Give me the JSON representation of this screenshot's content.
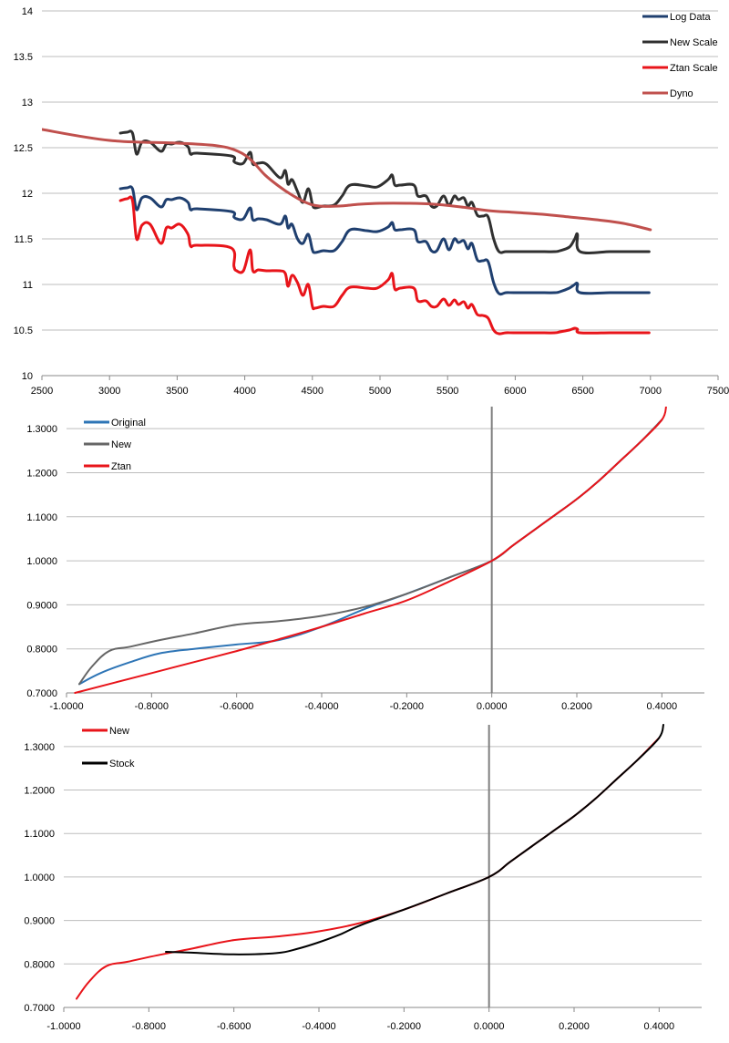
{
  "chart_data": [
    {
      "type": "line",
      "title": "",
      "xlabel": "",
      "ylabel": "",
      "xlim": [
        2500,
        7500
      ],
      "ylim": [
        10,
        14
      ],
      "xticks": [
        "2500",
        "3000",
        "3500",
        "4000",
        "4500",
        "5000",
        "5500",
        "6000",
        "6500",
        "7000",
        "7500"
      ],
      "yticks": [
        "10",
        "10.5",
        "11",
        "11.5",
        "12",
        "12.5",
        "13",
        "13.5",
        "14"
      ],
      "legend_position": "top-right",
      "series": [
        {
          "name": "Log Data",
          "color": "#1f3f6f",
          "x": [
            3080,
            3130,
            3170,
            3200,
            3240,
            3300,
            3380,
            3420,
            3460,
            3520,
            3580,
            3600,
            3650,
            3900,
            3920,
            3940,
            3990,
            4040,
            4060,
            4100,
            4160,
            4260,
            4300,
            4320,
            4350,
            4390,
            4430,
            4470,
            4500,
            4520,
            4580,
            4660,
            4720,
            4780,
            4900,
            4980,
            5060,
            5090,
            5110,
            5150,
            5250,
            5280,
            5340,
            5380,
            5420,
            5470,
            5510,
            5550,
            5580,
            5620,
            5650,
            5680,
            5720,
            5760,
            5800,
            5840,
            5880,
            5930,
            5990,
            6160,
            6290,
            6330,
            6400,
            6440,
            6460,
            6480,
            6700,
            6800,
            6990
          ],
          "values": [
            12.05,
            12.06,
            12.05,
            11.82,
            11.95,
            11.95,
            11.85,
            11.93,
            11.93,
            11.95,
            11.9,
            11.82,
            11.83,
            11.8,
            11.74,
            11.72,
            11.72,
            11.84,
            11.71,
            11.72,
            11.71,
            11.66,
            11.75,
            11.62,
            11.66,
            11.5,
            11.45,
            11.55,
            11.38,
            11.35,
            11.37,
            11.37,
            11.47,
            11.6,
            11.59,
            11.58,
            11.63,
            11.68,
            11.6,
            11.6,
            11.6,
            11.47,
            11.47,
            11.37,
            11.37,
            11.5,
            11.38,
            11.5,
            11.46,
            11.48,
            11.39,
            11.45,
            11.27,
            11.26,
            11.25,
            11.02,
            10.9,
            10.91,
            10.91,
            10.91,
            10.91,
            10.92,
            10.96,
            11.0,
            11.01,
            10.91,
            10.91,
            10.91,
            10.91
          ]
        },
        {
          "name": "New Scale",
          "color": "#303030",
          "x": [
            3080,
            3130,
            3170,
            3200,
            3240,
            3300,
            3380,
            3420,
            3460,
            3520,
            3580,
            3600,
            3650,
            3900,
            3920,
            3940,
            3990,
            4040,
            4060,
            4100,
            4160,
            4260,
            4300,
            4320,
            4350,
            4390,
            4430,
            4470,
            4500,
            4520,
            4580,
            4660,
            4720,
            4780,
            4900,
            4980,
            5060,
            5090,
            5110,
            5150,
            5250,
            5280,
            5340,
            5380,
            5420,
            5470,
            5510,
            5550,
            5580,
            5620,
            5650,
            5680,
            5720,
            5760,
            5800,
            5840,
            5880,
            5930,
            5990,
            6160,
            6290,
            6330,
            6400,
            6440,
            6460,
            6480,
            6700,
            6800,
            6990
          ],
          "values": [
            12.66,
            12.67,
            12.66,
            12.43,
            12.56,
            12.56,
            12.46,
            12.54,
            12.54,
            12.56,
            12.51,
            12.43,
            12.44,
            12.41,
            12.35,
            12.33,
            12.33,
            12.45,
            12.32,
            12.33,
            12.32,
            12.17,
            12.25,
            12.1,
            12.15,
            12.02,
            11.9,
            12.05,
            11.88,
            11.84,
            11.86,
            11.87,
            11.97,
            12.09,
            12.08,
            12.07,
            12.15,
            12.2,
            12.09,
            12.09,
            12.09,
            11.97,
            11.97,
            11.86,
            11.86,
            11.97,
            11.87,
            11.97,
            11.93,
            11.95,
            11.86,
            11.9,
            11.76,
            11.75,
            11.74,
            11.5,
            11.36,
            11.36,
            11.36,
            11.36,
            11.36,
            11.37,
            11.41,
            11.5,
            11.55,
            11.36,
            11.36,
            11.36,
            11.36
          ]
        },
        {
          "name": "Ztan Scale",
          "color": "#e8141a",
          "x": [
            3080,
            3130,
            3170,
            3200,
            3240,
            3300,
            3380,
            3420,
            3460,
            3520,
            3580,
            3600,
            3650,
            3900,
            3920,
            3940,
            3990,
            4040,
            4060,
            4100,
            4160,
            4260,
            4300,
            4320,
            4350,
            4390,
            4430,
            4470,
            4500,
            4520,
            4580,
            4660,
            4720,
            4780,
            4900,
            4980,
            5060,
            5090,
            5110,
            5150,
            5250,
            5280,
            5340,
            5380,
            5420,
            5470,
            5510,
            5550,
            5580,
            5620,
            5650,
            5680,
            5720,
            5760,
            5800,
            5840,
            5880,
            5930,
            5990,
            6160,
            6290,
            6330,
            6400,
            6440,
            6460,
            6480,
            6700,
            6800,
            6990
          ],
          "values": [
            11.92,
            11.94,
            11.92,
            11.5,
            11.65,
            11.66,
            11.45,
            11.62,
            11.62,
            11.66,
            11.55,
            11.42,
            11.43,
            11.4,
            11.2,
            11.15,
            11.15,
            11.38,
            11.15,
            11.16,
            11.15,
            11.15,
            11.12,
            10.98,
            11.1,
            11.02,
            10.88,
            11.0,
            10.76,
            10.74,
            10.76,
            10.76,
            10.88,
            10.97,
            10.96,
            10.96,
            11.05,
            11.12,
            10.95,
            10.96,
            10.96,
            10.82,
            10.82,
            10.76,
            10.76,
            10.84,
            10.77,
            10.83,
            10.78,
            10.81,
            10.74,
            10.78,
            10.67,
            10.66,
            10.63,
            10.5,
            10.46,
            10.47,
            10.47,
            10.47,
            10.47,
            10.48,
            10.5,
            10.52,
            10.51,
            10.47,
            10.47,
            10.47,
            10.47
          ]
        },
        {
          "name": "Dyno",
          "color": "#c0504d",
          "x": [
            2500,
            3000,
            3500,
            3800,
            3950,
            4050,
            4150,
            4250,
            4350,
            4450,
            4550,
            4700,
            4850,
            5000,
            5200,
            5400,
            5600,
            5800,
            6000,
            6200,
            6400,
            6600,
            6800,
            7000
          ],
          "values": [
            12.7,
            12.58,
            12.55,
            12.52,
            12.46,
            12.36,
            12.2,
            12.08,
            11.98,
            11.9,
            11.86,
            11.86,
            11.88,
            11.89,
            11.89,
            11.88,
            11.85,
            11.81,
            11.79,
            11.77,
            11.74,
            11.71,
            11.67,
            11.6
          ]
        }
      ]
    },
    {
      "type": "line",
      "title": "",
      "xlabel": "",
      "ylabel": "",
      "xlim": [
        -1.0,
        0.5
      ],
      "ylim": [
        0.7,
        1.35
      ],
      "xticks": [
        "-1.0000",
        "-0.8000",
        "-0.6000",
        "-0.4000",
        "-0.2000",
        "0.0000",
        "0.2000",
        "0.4000"
      ],
      "yticks": [
        "0.7000",
        "0.8000",
        "0.9000",
        "1.0000",
        "1.1000",
        "1.2000",
        "1.3000"
      ],
      "legend_position": "top-left",
      "series": [
        {
          "name": "Original",
          "color": "#2e75b6",
          "x": [
            -0.97,
            -0.92,
            -0.85,
            -0.78,
            -0.7,
            -0.6,
            -0.5,
            -0.4,
            -0.3,
            -0.2,
            -0.1,
            0.0,
            0.05,
            0.1,
            0.15,
            0.2,
            0.25,
            0.3,
            0.35,
            0.4
          ],
          "values": [
            0.72,
            0.745,
            0.77,
            0.79,
            0.8,
            0.81,
            0.82,
            0.85,
            0.89,
            0.925,
            0.962,
            1.0,
            1.035,
            1.07,
            1.105,
            1.14,
            1.18,
            1.225,
            1.27,
            1.32
          ]
        },
        {
          "name": "New",
          "color": "#666666",
          "x": [
            -0.97,
            -0.94,
            -0.9,
            -0.85,
            -0.78,
            -0.7,
            -0.6,
            -0.5,
            -0.4,
            -0.3,
            -0.2,
            -0.1,
            0.0,
            0.05,
            0.1,
            0.15,
            0.2,
            0.25,
            0.3,
            0.35,
            0.4
          ],
          "values": [
            0.72,
            0.76,
            0.795,
            0.805,
            0.82,
            0.835,
            0.855,
            0.863,
            0.875,
            0.895,
            0.925,
            0.962,
            1.0,
            1.035,
            1.07,
            1.105,
            1.14,
            1.18,
            1.225,
            1.27,
            1.32
          ]
        },
        {
          "name": "Ztan",
          "color": "#e8141a",
          "x": [
            -0.98,
            -0.9,
            -0.8,
            -0.7,
            -0.6,
            -0.5,
            -0.4,
            -0.3,
            -0.2,
            -0.1,
            0.0,
            0.05,
            0.1,
            0.15,
            0.2,
            0.25,
            0.3,
            0.35,
            0.4,
            0.41
          ],
          "values": [
            0.7,
            0.72,
            0.745,
            0.77,
            0.795,
            0.822,
            0.85,
            0.88,
            0.91,
            0.953,
            1.0,
            1.035,
            1.07,
            1.105,
            1.14,
            1.18,
            1.225,
            1.27,
            1.32,
            1.35
          ]
        }
      ]
    },
    {
      "type": "line",
      "title": "",
      "xlabel": "",
      "ylabel": "",
      "xlim": [
        -1.0,
        0.5
      ],
      "ylim": [
        0.7,
        1.35
      ],
      "xticks": [
        "-1.0000",
        "-0.8000",
        "-0.6000",
        "-0.4000",
        "-0.2000",
        "0.0000",
        "0.2000",
        "0.4000"
      ],
      "yticks": [
        "0.7000",
        "0.8000",
        "0.9000",
        "1.0000",
        "1.1000",
        "1.2000",
        "1.3000"
      ],
      "legend_position": "top-left",
      "series": [
        {
          "name": "New",
          "color": "#e8141a",
          "x": [
            -0.97,
            -0.94,
            -0.9,
            -0.85,
            -0.78,
            -0.7,
            -0.6,
            -0.5,
            -0.4,
            -0.3,
            -0.2,
            -0.1,
            0.0,
            0.05,
            0.1,
            0.15,
            0.2,
            0.25,
            0.3,
            0.35,
            0.4
          ],
          "values": [
            0.72,
            0.76,
            0.795,
            0.805,
            0.82,
            0.835,
            0.855,
            0.863,
            0.875,
            0.895,
            0.925,
            0.962,
            1.0,
            1.035,
            1.07,
            1.105,
            1.14,
            1.18,
            1.225,
            1.27,
            1.32
          ]
        },
        {
          "name": "Stock",
          "color": "#000000",
          "x": [
            -0.76,
            -0.7,
            -0.6,
            -0.5,
            -0.45,
            -0.4,
            -0.35,
            -0.3,
            -0.2,
            -0.1,
            0.0,
            0.05,
            0.1,
            0.15,
            0.2,
            0.25,
            0.3,
            0.35,
            0.4,
            0.41
          ],
          "values": [
            0.828,
            0.826,
            0.822,
            0.825,
            0.835,
            0.85,
            0.868,
            0.89,
            0.925,
            0.962,
            1.0,
            1.035,
            1.07,
            1.105,
            1.14,
            1.18,
            1.225,
            1.27,
            1.32,
            1.35
          ]
        }
      ]
    }
  ]
}
